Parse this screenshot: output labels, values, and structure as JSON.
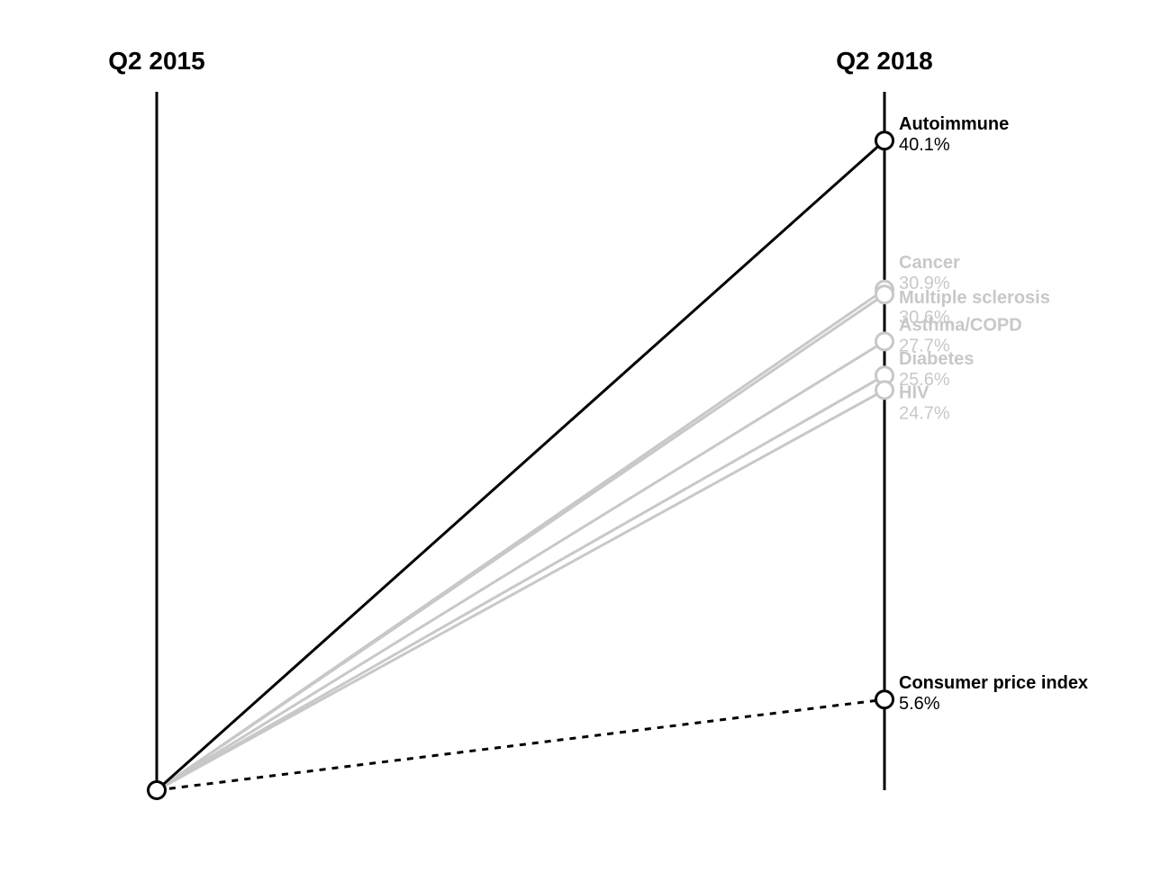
{
  "chart_data": {
    "type": "line",
    "title": "",
    "xlabel": "",
    "ylabel": "",
    "x": [
      "Q2 2015",
      "Q2 2018"
    ],
    "value_unit": "%",
    "ylim": [
      0,
      40.1
    ],
    "grid": false,
    "legend": "none",
    "series": [
      {
        "name": "Autoimmune",
        "values": [
          0,
          40.1
        ],
        "value_label": "40.1%",
        "highlight": true,
        "dashed": false,
        "color": "#000000"
      },
      {
        "name": "Cancer",
        "values": [
          0,
          30.9
        ],
        "value_label": "30.9%",
        "highlight": false,
        "dashed": false,
        "color": "#c8c8c8"
      },
      {
        "name": "Multiple sclerosis",
        "values": [
          0,
          30.6
        ],
        "value_label": "30.6%",
        "highlight": false,
        "dashed": false,
        "color": "#c8c8c8"
      },
      {
        "name": "Asthma/COPD",
        "values": [
          0,
          27.7
        ],
        "value_label": "27.7%",
        "highlight": false,
        "dashed": false,
        "color": "#c8c8c8"
      },
      {
        "name": "Diabetes",
        "values": [
          0,
          25.6
        ],
        "value_label": "25.6%",
        "highlight": false,
        "dashed": false,
        "color": "#c8c8c8"
      },
      {
        "name": "HIV",
        "values": [
          0,
          24.7
        ],
        "value_label": "24.7%",
        "highlight": false,
        "dashed": false,
        "color": "#c8c8c8"
      },
      {
        "name": "Consumer price index",
        "values": [
          0,
          5.6
        ],
        "value_label": "5.6%",
        "highlight": true,
        "dashed": true,
        "color": "#000000"
      }
    ]
  }
}
